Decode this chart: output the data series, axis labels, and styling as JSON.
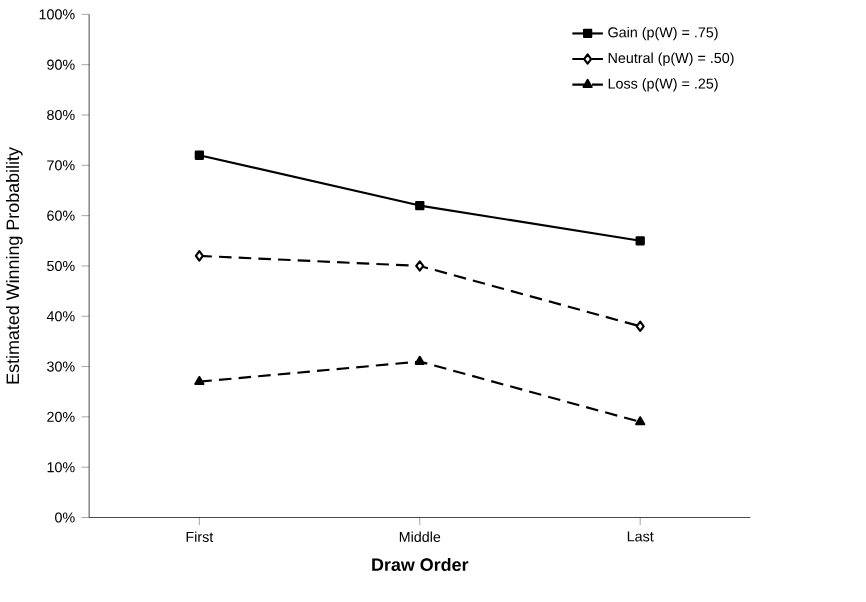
{
  "chart_data": {
    "type": "line",
    "xlabel": "Draw Order",
    "ylabel": "Estimated Winning Probability",
    "categories": [
      "First",
      "Middle",
      "Last"
    ],
    "series": [
      {
        "name": "Gain (p(W) = .75)",
        "color": "#000000",
        "values": [
          72,
          62,
          55
        ],
        "marker": "square",
        "line_style": "solid"
      },
      {
        "name": "Neutral (p(W) = .50)",
        "color": "#000000",
        "values": [
          52,
          50,
          38
        ],
        "marker": "diamond",
        "line_style": "dashed"
      },
      {
        "name": "Loss (p(W) = .25)",
        "color": "#000000",
        "values": [
          27,
          31,
          19
        ],
        "marker": "triangle",
        "line_style": "dashed"
      }
    ],
    "ylim": [
      0,
      100
    ],
    "yticks": [
      {
        "value": 0,
        "label": "0%"
      },
      {
        "value": 10,
        "label": "10%"
      },
      {
        "value": 20,
        "label": "20%"
      },
      {
        "value": 30,
        "label": "30%"
      },
      {
        "value": 40,
        "label": "40%"
      },
      {
        "value": 50,
        "label": "50%"
      },
      {
        "value": 60,
        "label": "60%"
      },
      {
        "value": 70,
        "label": "70%"
      },
      {
        "value": 80,
        "label": "80%"
      },
      {
        "value": 90,
        "label": "90%"
      },
      {
        "value": 100,
        "label": "100%"
      }
    ],
    "grid": false,
    "legend": "top right"
  }
}
